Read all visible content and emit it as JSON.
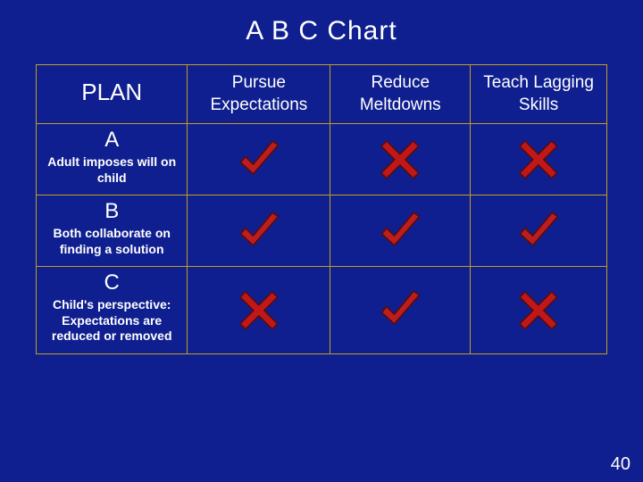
{
  "title": "A B C Chart",
  "page_number": "40",
  "colors": {
    "background": "#0f1f8f",
    "border": "#c0a020",
    "text": "#ffffff",
    "check": "#bb1e1e",
    "check_edge": "#5a0a0a",
    "cross": "#c01818",
    "cross_edge": "#5a0a0a"
  },
  "header": {
    "plan": "PLAN",
    "cols": [
      "Pursue Expectations",
      "Reduce Meltdowns",
      "Teach Lagging Skills"
    ]
  },
  "rows": [
    {
      "letter": "A",
      "desc": "Adult imposes will on child",
      "marks": [
        "check",
        "cross",
        "cross"
      ]
    },
    {
      "letter": "B",
      "desc": "Both collaborate on finding a solution",
      "marks": [
        "check",
        "check",
        "check"
      ]
    },
    {
      "letter": "C",
      "desc": "Child's perspective: Expectations are reduced or removed",
      "marks": [
        "cross",
        "check",
        "cross"
      ]
    }
  ],
  "icon_size": 54
}
